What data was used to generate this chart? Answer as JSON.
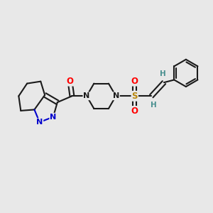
{
  "background_color": "#e8e8e8",
  "bond_color": "#1a1a1a",
  "atom_colors": {
    "N": "#0000cc",
    "O": "#ff0000",
    "S": "#b8860b",
    "H": "#4a9090",
    "C": "#1a1a1a"
  },
  "figsize": [
    3.0,
    3.0
  ],
  "dpi": 100,
  "xlim": [
    0,
    10
  ],
  "ylim": [
    0,
    10
  ]
}
